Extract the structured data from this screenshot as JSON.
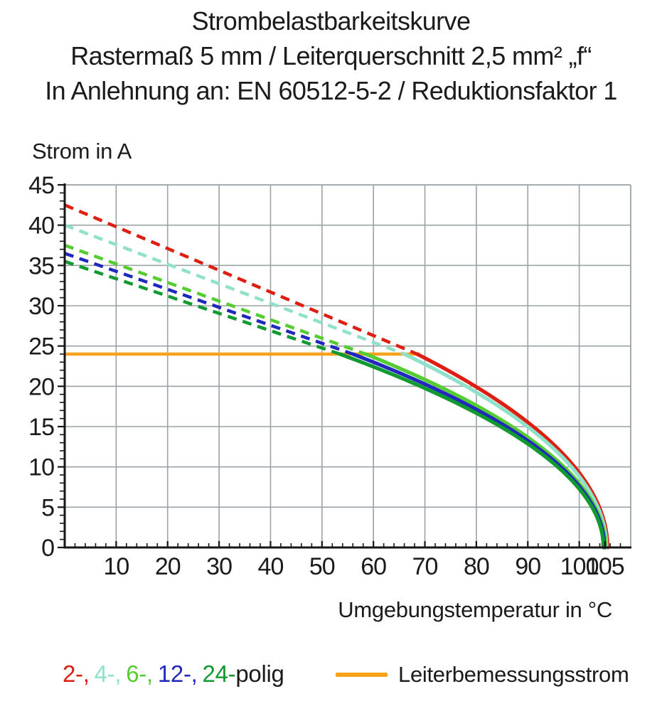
{
  "title": {
    "line1": "Strombelastbarkeitskurve",
    "line2": "Rastermaß 5 mm / Leiterquerschnitt 2,5 mm² „f“",
    "line3": "In Anlehnung an: EN 60512-5-2 / Reduktionsfaktor 1"
  },
  "chart_data": {
    "type": "line",
    "title": "Strombelastbarkeitskurve",
    "xlabel": "Umgebungstemperatur in °C",
    "ylabel": "Strom in A",
    "xlim": [
      0,
      110
    ],
    "ylim": [
      0,
      45
    ],
    "x_major_ticks": [
      10,
      20,
      30,
      40,
      50,
      60,
      70,
      80,
      90,
      100,
      105
    ],
    "x_gridlines": [
      10,
      20,
      30,
      40,
      50,
      60,
      70,
      80,
      90,
      100
    ],
    "x_minor_step": 2,
    "y_major_ticks": [
      0,
      5,
      10,
      15,
      20,
      25,
      30,
      35,
      40,
      45
    ],
    "y_gridlines": [
      5,
      10,
      15,
      20,
      25,
      30,
      35,
      40
    ],
    "y_minor_step": 1,
    "grid": {
      "on": true,
      "color": "#9aa3a6",
      "axis_color": "#161616"
    },
    "rated_current": {
      "label": "Leiterbemessungsstrom",
      "value_a": 24,
      "color": "#f7a21a",
      "from_c": 0,
      "to_c": 69
    },
    "line_style_note": "dashed above rated current, solid below",
    "series": [
      {
        "name": "2-polig",
        "poles": 2,
        "color": "#dd1e10",
        "start_current_a": 42.5,
        "rated_cap_a": 24,
        "kink_temp_c": 68.5,
        "zero_current_temp_c": 105.5
      },
      {
        "name": "4-polig",
        "poles": 4,
        "color": "#8fe1c9",
        "start_current_a": 40.0,
        "rated_cap_a": 24,
        "kink_temp_c": 66.0,
        "zero_current_temp_c": 105.3
      },
      {
        "name": "6-polig",
        "poles": 6,
        "color": "#55cd32",
        "start_current_a": 37.5,
        "rated_cap_a": 24,
        "kink_temp_c": 58.5,
        "zero_current_temp_c": 105.1
      },
      {
        "name": "12-polig",
        "poles": 12,
        "color": "#2028be",
        "start_current_a": 36.5,
        "rated_cap_a": 24,
        "kink_temp_c": 56.0,
        "zero_current_temp_c": 104.9
      },
      {
        "name": "24-polig",
        "poles": 24,
        "color": "#129a30",
        "start_current_a": 35.5,
        "rated_cap_a": 24,
        "kink_temp_c": 53.5,
        "zero_current_temp_c": 104.7
      }
    ],
    "legend": {
      "pole_items": [
        {
          "text": "2-,",
          "color": "#dd1e10"
        },
        {
          "text": "4-,",
          "color": "#8fe1c9"
        },
        {
          "text": "6-,",
          "color": "#55cd32"
        },
        {
          "text": "12-,",
          "color": "#2028be"
        },
        {
          "text": "24-",
          "color": "#129a30"
        }
      ],
      "pole_suffix": "polig",
      "rated_label": "Leiterbemessungsstrom"
    }
  }
}
